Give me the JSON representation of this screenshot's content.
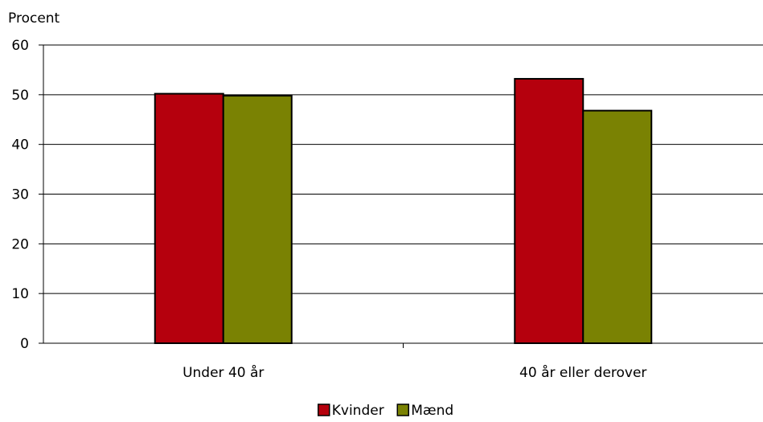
{
  "chart_data": {
    "type": "bar",
    "ylabel": "Procent",
    "ylim": [
      0,
      60
    ],
    "yticks": [
      0,
      10,
      20,
      30,
      40,
      50,
      60
    ],
    "categories": [
      "Under 40 år",
      "40 år eller derover"
    ],
    "series": [
      {
        "name": "Kvinder",
        "values": [
          50.2,
          53.2
        ],
        "color": "#b5000d"
      },
      {
        "name": "Mænd",
        "values": [
          49.8,
          46.8
        ],
        "color": "#7a8203"
      }
    ],
    "grid": true,
    "legend_position": "bottom-center"
  }
}
